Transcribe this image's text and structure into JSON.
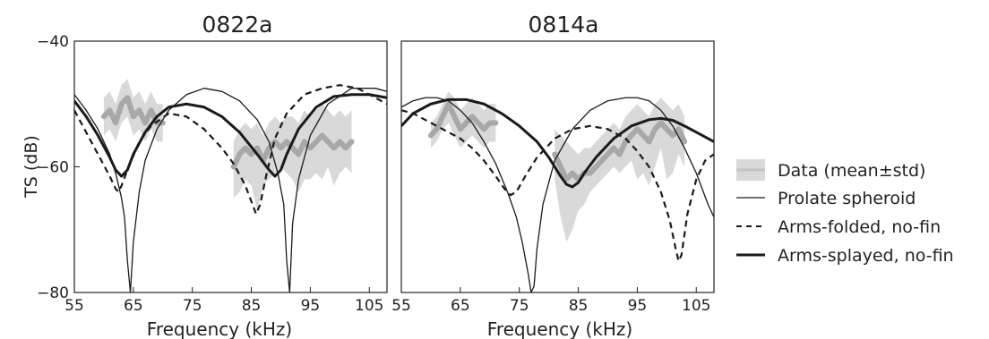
{
  "chart_data": [
    {
      "type": "line",
      "title": "0822a",
      "xlabel": "Frequency (kHz)",
      "ylabel": "TS (dB)",
      "xlim": [
        55,
        108
      ],
      "ylim": [
        -80,
        -40
      ],
      "xticks": [
        55,
        65,
        75,
        85,
        95,
        105
      ],
      "yticks": [
        -40,
        -60,
        -80
      ],
      "series": [
        {
          "name": "Data (mean±std)",
          "style": "data",
          "segments": [
            {
              "x": [
                60,
                61,
                62,
                63,
                64,
                65,
                66,
                67,
                68,
                69,
                70
              ],
              "y": [
                -52,
                -51,
                -53,
                -50,
                -49,
                -52,
                -51,
                -53,
                -51,
                -53,
                -53
              ],
              "lo": [
                -55,
                -54,
                -56,
                -53,
                -52,
                -55,
                -54,
                -56,
                -54,
                -56,
                -56
              ],
              "hi": [
                -49,
                -48,
                -50,
                -47,
                -46,
                -49,
                -48,
                -50,
                -48,
                -50,
                -50
              ]
            },
            {
              "x": [
                82,
                83,
                84,
                85,
                86,
                87,
                88,
                89,
                90,
                91,
                92,
                93,
                94,
                95,
                96,
                97,
                98,
                99,
                100,
                101,
                102
              ],
              "y": [
                -60,
                -58,
                -57,
                -58,
                -57,
                -59,
                -57,
                -56,
                -57,
                -56,
                -57,
                -58,
                -56,
                -57,
                -56,
                -55,
                -56,
                -57,
                -56,
                -57,
                -56
              ],
              "lo": [
                -65,
                -64,
                -62,
                -63,
                -67,
                -63,
                -62,
                -61,
                -60,
                -61,
                -62,
                -64,
                -62,
                -62,
                -61,
                -62,
                -60,
                -63,
                -61,
                -60,
                -61
              ],
              "hi": [
                -56,
                -54,
                -53,
                -54,
                -53,
                -55,
                -53,
                -52,
                -53,
                -52,
                -52,
                -53,
                -51,
                -52,
                -51,
                -50,
                -51,
                -52,
                -51,
                -52,
                -51
              ]
            }
          ]
        },
        {
          "name": "Prolate spheroid",
          "style": "thin",
          "x": [
            55,
            57,
            59,
            61,
            62,
            63,
            63.5,
            64,
            64.5,
            65,
            66,
            67,
            69,
            71,
            74,
            77,
            80,
            83,
            86,
            88,
            89.5,
            90.5,
            91,
            91.5,
            92,
            93,
            95,
            98,
            102,
            106,
            108
          ],
          "y": [
            -48.5,
            -51,
            -54,
            -58,
            -61,
            -65,
            -68,
            -75,
            -80,
            -72,
            -64,
            -59,
            -54,
            -51,
            -48.5,
            -47.5,
            -48,
            -49.5,
            -52.5,
            -56,
            -61,
            -66,
            -75,
            -80,
            -69,
            -62,
            -55,
            -50,
            -47.5,
            -47.5,
            -48
          ]
        },
        {
          "name": "Arms-folded, no-fin",
          "style": "dashed",
          "x": [
            55,
            57,
            59,
            61,
            62,
            62.5,
            63,
            64,
            66,
            68,
            71,
            74,
            77,
            80,
            82,
            84,
            85,
            85.8,
            86.5,
            87.5,
            89,
            91,
            94,
            97,
            100,
            103,
            105,
            108
          ],
          "y": [
            -51,
            -54.5,
            -58,
            -61.5,
            -63.5,
            -64,
            -63,
            -60.5,
            -56,
            -53.5,
            -51.5,
            -52,
            -54,
            -57,
            -59.5,
            -63,
            -65.5,
            -67.5,
            -66,
            -61.5,
            -55.5,
            -51.5,
            -48.5,
            -47.5,
            -47,
            -47.5,
            -48.5,
            -50
          ]
        },
        {
          "name": "Arms-splayed, no-fin",
          "style": "thick",
          "x": [
            55,
            57,
            59,
            61,
            62,
            63,
            64,
            65,
            67,
            69,
            71,
            74,
            77,
            80,
            83,
            86,
            88,
            89,
            90,
            91,
            93,
            96,
            99,
            102,
            105,
            108
          ],
          "y": [
            -49.5,
            -52,
            -55,
            -58.5,
            -60.5,
            -61.5,
            -60.5,
            -58,
            -54.5,
            -52,
            -50.5,
            -50,
            -50.5,
            -52,
            -54.5,
            -58,
            -60.5,
            -61.5,
            -60.5,
            -58,
            -54,
            -50.5,
            -48.8,
            -48.5,
            -48.5,
            -49
          ]
        }
      ]
    },
    {
      "type": "line",
      "title": "0814a",
      "xlabel": "Frequency (kHz)",
      "xlim": [
        55,
        108
      ],
      "ylim": [
        -80,
        -40
      ],
      "xticks": [
        55,
        65,
        75,
        85,
        95,
        105
      ],
      "series": [
        {
          "name": "Data (mean±std)",
          "style": "data",
          "segments": [
            {
              "x": [
                60,
                61,
                62,
                63,
                64,
                65,
                66,
                67,
                68,
                69,
                70,
                71
              ],
              "y": [
                -55,
                -54,
                -52,
                -50,
                -52,
                -54,
                -53,
                -52,
                -53,
                -54,
                -53,
                -53
              ],
              "lo": [
                -57,
                -56,
                -54,
                -53,
                -55,
                -57,
                -56,
                -55,
                -56,
                -57,
                -56,
                -56
              ],
              "hi": [
                -53,
                -52,
                -50,
                -48,
                -49,
                -51,
                -50,
                -49,
                -50,
                -51,
                -50,
                -50
              ]
            },
            {
              "x": [
                81,
                82,
                83,
                84,
                85,
                86,
                87,
                88,
                89,
                90,
                91,
                92,
                93,
                94,
                95,
                96,
                97,
                98,
                99,
                100,
                101,
                102,
                103
              ],
              "y": [
                -58,
                -60,
                -62,
                -61,
                -62,
                -61,
                -61,
                -60,
                -59,
                -58,
                -57,
                -58,
                -56,
                -55,
                -54,
                -55,
                -56,
                -54,
                -53,
                -54,
                -55,
                -54,
                -56
              ],
              "lo": [
                -62,
                -68,
                -72,
                -70,
                -67,
                -66,
                -64,
                -63,
                -62,
                -61,
                -60,
                -61,
                -60,
                -59,
                -62,
                -61,
                -63,
                -60,
                -57,
                -62,
                -61,
                -58,
                -60
              ],
              "hi": [
                -54,
                -55,
                -56,
                -57,
                -58,
                -57,
                -57,
                -56,
                -55,
                -54,
                -53,
                -54,
                -52,
                -51,
                -50,
                -51,
                -52,
                -50,
                -49,
                -50,
                -51,
                -50,
                -52
              ]
            }
          ]
        },
        {
          "name": "Prolate spheroid",
          "style": "thin",
          "x": [
            55,
            57,
            59,
            61,
            63,
            65,
            67,
            69,
            71,
            73,
            74.5,
            75.5,
            76.5,
            77,
            77.5,
            78,
            79,
            81,
            84,
            87,
            90,
            93,
            95,
            97,
            99,
            101,
            103,
            105,
            106,
            107,
            108
          ],
          "y": [
            -50.5,
            -49.5,
            -49,
            -49,
            -49.5,
            -51,
            -53,
            -56,
            -59.5,
            -64,
            -68,
            -72,
            -77,
            -80,
            -79,
            -73,
            -66,
            -59,
            -54,
            -51,
            -49.5,
            -49,
            -49,
            -49.5,
            -51,
            -53.5,
            -57,
            -61,
            -63.5,
            -66,
            -68
          ]
        },
        {
          "name": "Arms-folded, no-fin",
          "style": "dashed",
          "x": [
            55,
            57,
            59,
            61,
            63,
            65,
            67,
            69,
            71,
            72.5,
            73.5,
            74.5,
            76,
            78,
            81,
            84,
            87,
            90,
            93,
            95,
            97,
            99,
            100.5,
            101.5,
            102,
            102.5,
            103.5,
            105,
            106.5,
            108
          ],
          "y": [
            -51,
            -51.5,
            -52.5,
            -53.5,
            -54.5,
            -55.5,
            -57,
            -59,
            -61.5,
            -63.5,
            -64.5,
            -64,
            -61.5,
            -58.5,
            -55.5,
            -54,
            -53.5,
            -54,
            -55.5,
            -57.5,
            -60,
            -64,
            -68.5,
            -73,
            -75,
            -74,
            -67.5,
            -62,
            -59,
            -58
          ]
        },
        {
          "name": "Arms-splayed, no-fin",
          "style": "thick",
          "x": [
            55,
            57,
            60,
            63,
            66,
            69,
            72,
            75,
            78,
            80,
            82,
            83,
            84,
            85,
            86,
            88,
            91,
            94,
            97,
            99,
            101,
            103,
            105,
            108
          ],
          "y": [
            -53.5,
            -51.5,
            -50,
            -49.3,
            -49.3,
            -50,
            -51.5,
            -53.5,
            -56,
            -58.5,
            -61.5,
            -62.8,
            -63.2,
            -62.5,
            -61,
            -58.5,
            -55.5,
            -53.5,
            -52.5,
            -52.3,
            -52.6,
            -53.5,
            -54.5,
            -56
          ]
        }
      ]
    }
  ],
  "legend": [
    {
      "label": "Data (mean±std)",
      "style": "data"
    },
    {
      "label": "Prolate spheroid",
      "style": "thin"
    },
    {
      "label": "Arms-folded, no-fin",
      "style": "dashed"
    },
    {
      "label": "Arms-splayed, no-fin",
      "style": "thick"
    }
  ],
  "colors": {
    "data_line": "#a8a8a8",
    "data_band": "#d9d9d9",
    "curves": "#1a1a1a"
  }
}
